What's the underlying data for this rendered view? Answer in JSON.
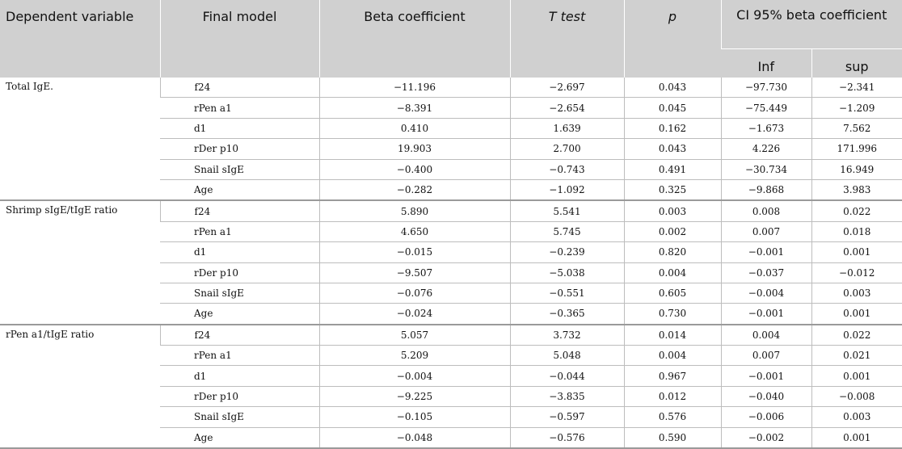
{
  "headers": {
    "dependent_variable": "Dependent variable",
    "final_model": "Final model",
    "beta_coefficient": "Beta coefficient",
    "t_test": "T test",
    "p": "p",
    "ci": "CI 95% beta coefficient",
    "inf": "Inf",
    "sup": "sup"
  },
  "groups": [
    {
      "dependent": "Total IgE.",
      "rows": [
        {
          "model": "f24",
          "beta": "−11.196",
          "t": "−2.697",
          "p": "0.043",
          "inf": "−97.730",
          "sup": "−2.341"
        },
        {
          "model": "rPen a1",
          "beta": "−8.391",
          "t": "−2.654",
          "p": "0.045",
          "inf": "−75.449",
          "sup": "−1.209"
        },
        {
          "model": "d1",
          "beta": "0.410",
          "t": "1.639",
          "p": "0.162",
          "inf": "−1.673",
          "sup": "7.562"
        },
        {
          "model": "rDer p10",
          "beta": "19.903",
          "t": "2.700",
          "p": "0.043",
          "inf": "4.226",
          "sup": "171.996"
        },
        {
          "model": "Snail sIgE",
          "beta": "−0.400",
          "t": "−0.743",
          "p": "0.491",
          "inf": "−30.734",
          "sup": "16.949"
        },
        {
          "model": "Age",
          "beta": "−0.282",
          "t": "−1.092",
          "p": "0.325",
          "inf": "−9.868",
          "sup": "3.983"
        }
      ]
    },
    {
      "dependent": "Shrimp sIgE/tIgE ratio",
      "rows": [
        {
          "model": "f24",
          "beta": "5.890",
          "t": "5.541",
          "p": "0.003",
          "inf": "0.008",
          "sup": "0.022"
        },
        {
          "model": "rPen a1",
          "beta": "4.650",
          "t": "5.745",
          "p": "0.002",
          "inf": "0.007",
          "sup": "0.018"
        },
        {
          "model": "d1",
          "beta": "−0.015",
          "t": "−0.239",
          "p": "0.820",
          "inf": "−0.001",
          "sup": "0.001"
        },
        {
          "model": "rDer p10",
          "beta": "−9.507",
          "t": "−5.038",
          "p": "0.004",
          "inf": "−0.037",
          "sup": "−0.012"
        },
        {
          "model": "Snail sIgE",
          "beta": "−0.076",
          "t": "−0.551",
          "p": "0.605",
          "inf": "−0.004",
          "sup": "0.003"
        },
        {
          "model": "Age",
          "beta": "−0.024",
          "t": "−0.365",
          "p": "0.730",
          "inf": "−0.001",
          "sup": "0.001"
        }
      ]
    },
    {
      "dependent": "rPen a1/tIgE ratio",
      "rows": [
        {
          "model": "f24",
          "beta": "5.057",
          "t": "3.732",
          "p": "0.014",
          "inf": "0.004",
          "sup": "0.022"
        },
        {
          "model": "rPen a1",
          "beta": "5.209",
          "t": "5.048",
          "p": "0.004",
          "inf": "0.007",
          "sup": "0.021"
        },
        {
          "model": "d1",
          "beta": "−0.004",
          "t": "−0.044",
          "p": "0.967",
          "inf": "−0.001",
          "sup": "0.001"
        },
        {
          "model": "rDer p10",
          "beta": "−9.225",
          "t": "−3.835",
          "p": "0.012",
          "inf": "−0.040",
          "sup": "−0.008"
        },
        {
          "model": "Snail sIgE",
          "beta": "−0.105",
          "t": "−0.597",
          "p": "0.576",
          "inf": "−0.006",
          "sup": "0.003"
        },
        {
          "model": "Age",
          "beta": "−0.048",
          "t": "−0.576",
          "p": "0.590",
          "inf": "−0.002",
          "sup": "0.001"
        }
      ]
    }
  ]
}
